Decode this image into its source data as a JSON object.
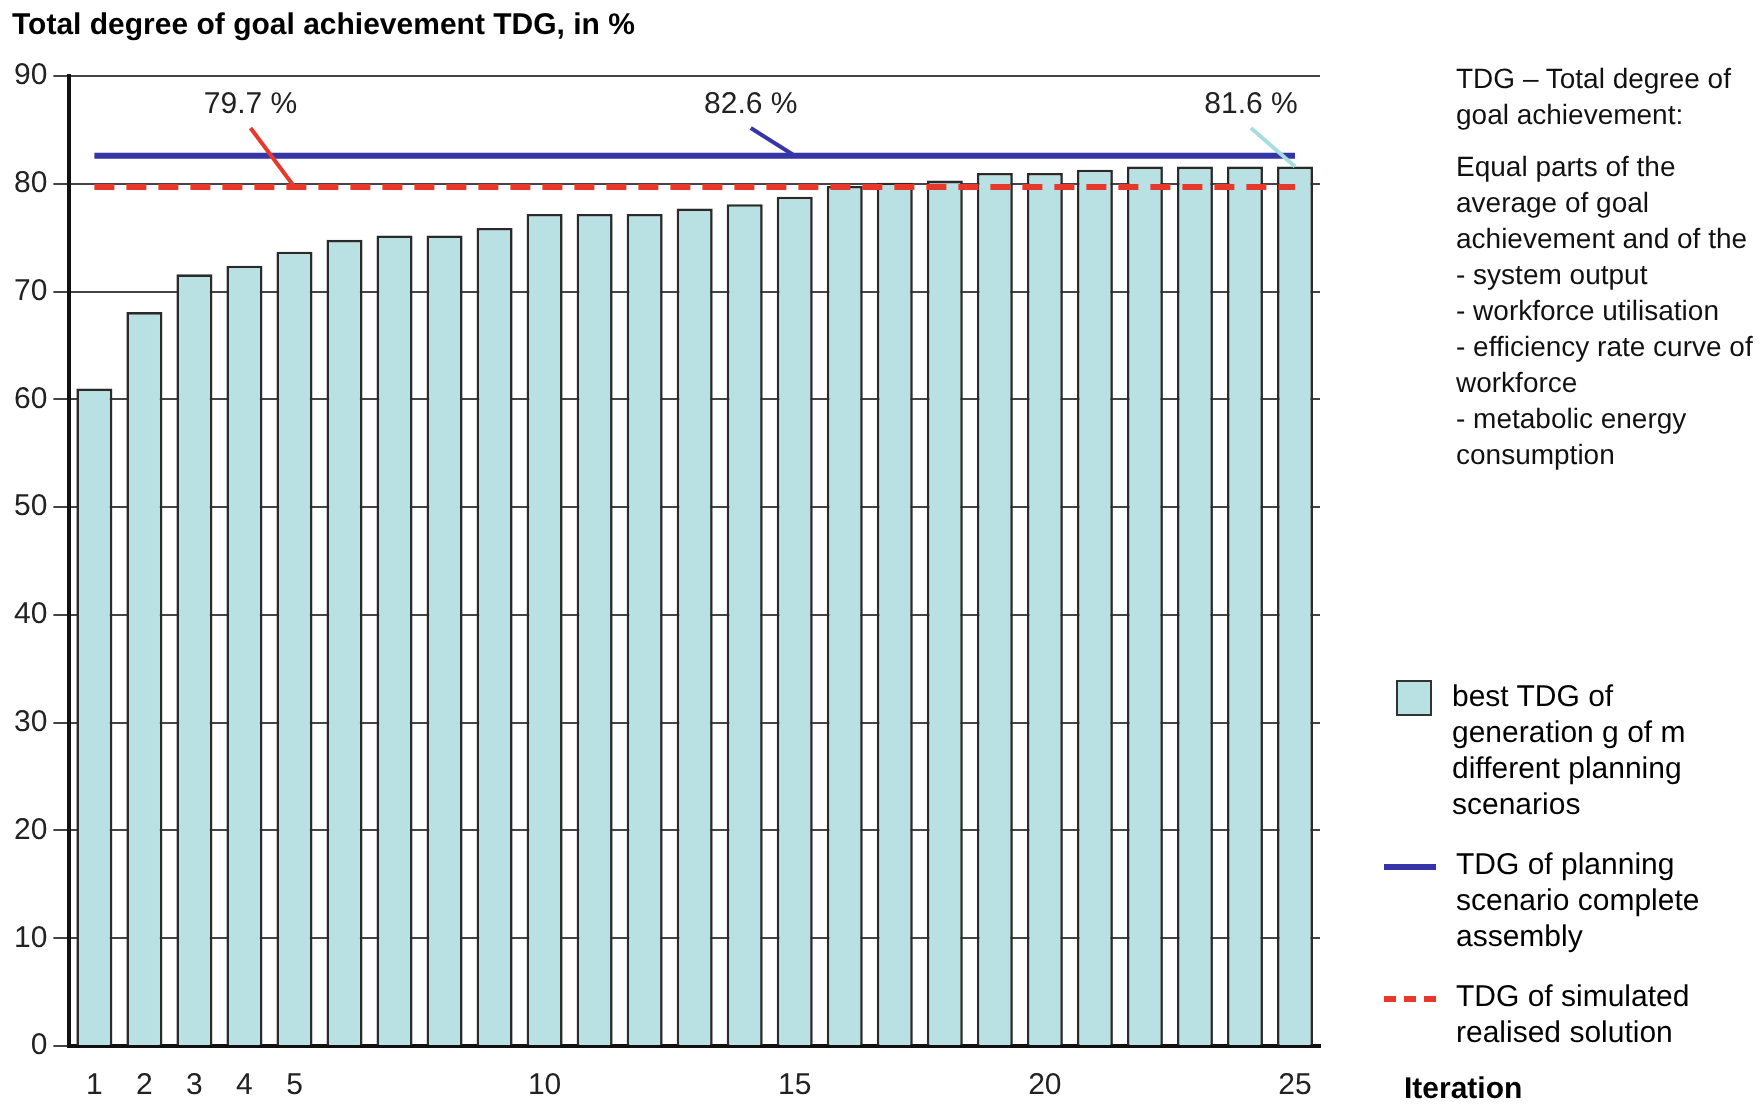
{
  "chart_data": {
    "type": "bar",
    "title": "Total degree of goal achievement TDG, in %",
    "xlabel": "Iteration",
    "categories": [
      "1",
      "2",
      "3",
      "4",
      "5",
      null,
      null,
      null,
      null,
      "10",
      null,
      null,
      null,
      null,
      "15",
      null,
      null,
      null,
      null,
      "20",
      null,
      null,
      null,
      null,
      "25"
    ],
    "series": [
      {
        "name": "best TDG of generation g of m different planning scenarios",
        "color": "#b9e0e3",
        "values": [
          61.0,
          68.1,
          71.6,
          72.4,
          73.7,
          74.8,
          75.2,
          75.2,
          75.9,
          77.2,
          77.2,
          77.2,
          77.7,
          78.1,
          78.8,
          79.8,
          80.1,
          80.3,
          81.0,
          81.0,
          81.3,
          81.6,
          81.6,
          81.6,
          81.6
        ]
      },
      {
        "name": "TDG of planning scenario complete assembly",
        "type": "line",
        "color": "#3535a8",
        "line_style": "solid",
        "values": [
          82.6,
          82.6,
          82.6,
          82.6,
          82.6,
          82.6,
          82.6,
          82.6,
          82.6,
          82.6,
          82.6,
          82.6,
          82.6,
          82.6,
          82.6,
          82.6,
          82.6,
          82.6,
          82.6,
          82.6,
          82.6,
          82.6,
          82.6,
          82.6,
          82.6
        ]
      },
      {
        "name": "TDG of simulated realised solution",
        "type": "line",
        "color": "#e8382b",
        "line_style": "dashed",
        "values": [
          79.7,
          79.7,
          79.7,
          79.7,
          79.7,
          79.7,
          79.7,
          79.7,
          79.7,
          79.7,
          79.7,
          79.7,
          79.7,
          79.7,
          79.7,
          79.7,
          79.7,
          79.7,
          79.7,
          79.7,
          79.7,
          79.7,
          79.7,
          79.7,
          79.7
        ]
      }
    ],
    "annotations": [
      {
        "text": "79.7 %",
        "x": "5",
        "y": 79.7
      },
      {
        "text": "82.6 %",
        "x": "15",
        "y": 82.6
      },
      {
        "text": "81.6 %",
        "x": "25",
        "y": 81.6
      },
      "TDG – Total degree of goal achievement:",
      "Equal parts of the average of goal achievement and of the\n- system output\n- workforce utilisation\n- efficiency rate curve of workforce\n- metabolic energy consumption"
    ],
    "ylim": [
      0,
      90
    ],
    "yticks": [
      0,
      10,
      20,
      30,
      40,
      50,
      60,
      70,
      80,
      90
    ],
    "grid": "y",
    "legend": "right",
    "marker": "none"
  }
}
